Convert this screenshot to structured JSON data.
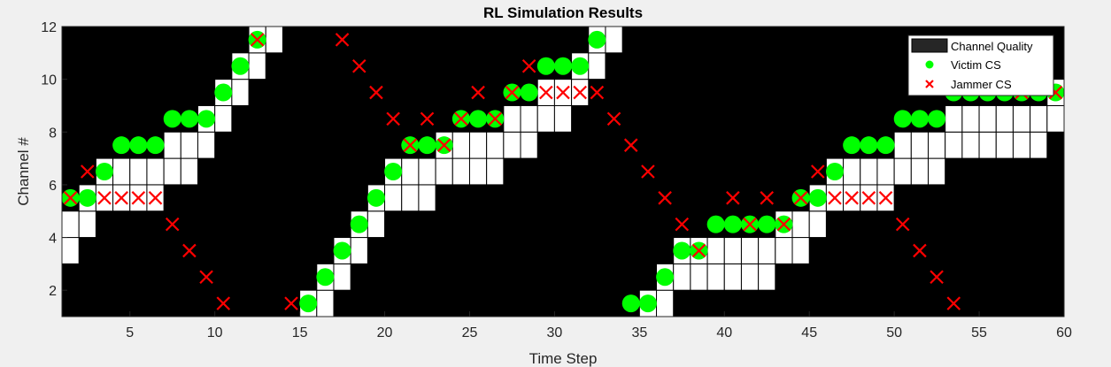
{
  "chart_data": {
    "type": "scatter",
    "title": "RL Simulation Results",
    "xlabel": "Time Step",
    "ylabel": "Channel #",
    "xlim": [
      1,
      60
    ],
    "ylim": [
      1,
      12
    ],
    "xticks": [
      5,
      10,
      15,
      20,
      25,
      30,
      35,
      40,
      45,
      50,
      55,
      60
    ],
    "yticks": [
      2,
      4,
      6,
      8,
      10,
      12
    ],
    "background_color": "#000000",
    "legend_position": "top-right",
    "legend": [
      {
        "label": "Channel Quality",
        "marker": "filled-rect",
        "color": "#262626"
      },
      {
        "label": "Victim CS",
        "marker": "circle",
        "color": "#00ff00"
      },
      {
        "label": "Jammer CS",
        "marker": "x",
        "color": "#ff0000"
      }
    ],
    "channel_quality": {
      "color": "#ffffff",
      "note_cell_width_steps": 1,
      "columns": [
        {
          "x": 2,
          "channels": [
            3,
            4
          ]
        },
        {
          "x": 3,
          "channels": [
            4,
            5
          ]
        },
        {
          "x": 4,
          "channels": [
            5,
            6
          ]
        },
        {
          "x": 5,
          "channels": [
            5,
            6
          ]
        },
        {
          "x": 6,
          "channels": [
            5,
            6
          ]
        },
        {
          "x": 7,
          "channels": [
            5,
            6
          ]
        },
        {
          "x": 8,
          "channels": [
            6,
            7
          ]
        },
        {
          "x": 9,
          "channels": [
            6,
            7
          ]
        },
        {
          "x": 10,
          "channels": [
            7,
            8
          ]
        },
        {
          "x": 11,
          "channels": [
            8,
            9
          ]
        },
        {
          "x": 12,
          "channels": [
            9,
            10
          ]
        },
        {
          "x": 13,
          "channels": [
            10,
            11
          ]
        },
        {
          "x": 14,
          "channels": [
            11
          ]
        },
        {
          "x": 16,
          "channels": [
            1
          ]
        },
        {
          "x": 17,
          "channels": [
            1,
            2
          ]
        },
        {
          "x": 18,
          "channels": [
            2,
            3
          ]
        },
        {
          "x": 19,
          "channels": [
            3,
            4
          ]
        },
        {
          "x": 20,
          "channels": [
            4,
            5
          ]
        },
        {
          "x": 21,
          "channels": [
            5,
            6
          ]
        },
        {
          "x": 22,
          "channels": [
            5,
            6
          ]
        },
        {
          "x": 23,
          "channels": [
            5,
            6
          ]
        },
        {
          "x": 24,
          "channels": [
            6,
            7
          ]
        },
        {
          "x": 25,
          "channels": [
            6,
            7
          ]
        },
        {
          "x": 26,
          "channels": [
            6,
            7
          ]
        },
        {
          "x": 27,
          "channels": [
            6,
            7
          ]
        },
        {
          "x": 28,
          "channels": [
            7,
            8
          ]
        },
        {
          "x": 29,
          "channels": [
            7,
            8
          ]
        },
        {
          "x": 30,
          "channels": [
            8,
            9
          ]
        },
        {
          "x": 31,
          "channels": [
            8,
            9
          ]
        },
        {
          "x": 32,
          "channels": [
            9,
            10
          ]
        },
        {
          "x": 33,
          "channels": [
            10,
            11
          ]
        },
        {
          "x": 34,
          "channels": [
            11
          ]
        },
        {
          "x": 36,
          "channels": [
            1
          ]
        },
        {
          "x": 37,
          "channels": [
            1,
            2
          ]
        },
        {
          "x": 38,
          "channels": [
            2,
            3
          ]
        },
        {
          "x": 39,
          "channels": [
            2,
            3
          ]
        },
        {
          "x": 40,
          "channels": [
            2,
            3
          ]
        },
        {
          "x": 41,
          "channels": [
            2,
            3
          ]
        },
        {
          "x": 42,
          "channels": [
            2,
            3
          ]
        },
        {
          "x": 43,
          "channels": [
            2,
            3
          ]
        },
        {
          "x": 44,
          "channels": [
            3,
            4
          ]
        },
        {
          "x": 45,
          "channels": [
            3,
            4
          ]
        },
        {
          "x": 46,
          "channels": [
            4,
            5
          ]
        },
        {
          "x": 47,
          "channels": [
            5,
            6
          ]
        },
        {
          "x": 48,
          "channels": [
            5,
            6
          ]
        },
        {
          "x": 49,
          "channels": [
            5,
            6
          ]
        },
        {
          "x": 50,
          "channels": [
            5,
            6
          ]
        },
        {
          "x": 51,
          "channels": [
            6,
            7
          ]
        },
        {
          "x": 52,
          "channels": [
            6,
            7
          ]
        },
        {
          "x": 53,
          "channels": [
            6,
            7
          ]
        },
        {
          "x": 54,
          "channels": [
            7,
            8
          ]
        },
        {
          "x": 55,
          "channels": [
            7,
            8
          ]
        },
        {
          "x": 56,
          "channels": [
            7,
            8
          ]
        },
        {
          "x": 57,
          "channels": [
            7,
            8
          ]
        },
        {
          "x": 58,
          "channels": [
            7,
            8
          ]
        },
        {
          "x": 59,
          "channels": [
            7,
            8
          ]
        },
        {
          "x": 60,
          "channels": [
            8,
            9
          ]
        }
      ]
    },
    "series": [
      {
        "name": "Victim CS",
        "marker": "circle",
        "color": "#00ff00",
        "x": [
          1.5,
          2.5,
          3.5,
          4.5,
          5.5,
          6.5,
          7.5,
          8.5,
          9.5,
          10.5,
          11.5,
          12.5,
          15.5,
          16.5,
          17.5,
          18.5,
          19.5,
          20.5,
          21.5,
          22.5,
          23.5,
          24.5,
          25.5,
          26.5,
          27.5,
          28.5,
          29.5,
          30.5,
          31.5,
          32.5,
          34.5,
          35.5,
          36.5,
          37.5,
          38.5,
          39.5,
          40.5,
          41.5,
          42.5,
          43.5,
          44.5,
          45.5,
          46.5,
          47.5,
          48.5,
          49.5,
          50.5,
          51.5,
          52.5,
          53.5,
          54.5,
          55.5,
          56.5,
          57.5,
          58.5,
          59.5
        ],
        "y": [
          5.5,
          5.5,
          6.5,
          7.5,
          7.5,
          7.5,
          8.5,
          8.5,
          8.5,
          9.5,
          10.5,
          11.5,
          1.5,
          2.5,
          3.5,
          4.5,
          5.5,
          6.5,
          7.5,
          7.5,
          7.5,
          8.5,
          8.5,
          8.5,
          9.5,
          9.5,
          10.5,
          10.5,
          10.5,
          11.5,
          1.5,
          1.5,
          2.5,
          3.5,
          3.5,
          4.5,
          4.5,
          4.5,
          4.5,
          4.5,
          5.5,
          5.5,
          6.5,
          7.5,
          7.5,
          7.5,
          8.5,
          8.5,
          8.5,
          9.5,
          9.5,
          9.5,
          9.5,
          9.5,
          9.5,
          9.5
        ]
      },
      {
        "name": "Jammer CS",
        "marker": "x",
        "color": "#ff0000",
        "x": [
          1.5,
          2.5,
          3.5,
          4.5,
          5.5,
          6.5,
          7.5,
          8.5,
          9.5,
          10.5,
          12.5,
          14.5,
          17.5,
          18.5,
          19.5,
          20.5,
          21.5,
          22.5,
          23.5,
          24.5,
          25.5,
          26.5,
          27.5,
          28.5,
          29.5,
          30.5,
          31.5,
          32.5,
          33.5,
          34.5,
          35.5,
          36.5,
          37.5,
          38.5,
          40.5,
          41.5,
          42.5,
          43.5,
          44.5,
          45.5,
          46.5,
          47.5,
          48.5,
          49.5,
          50.5,
          51.5,
          52.5,
          53.5,
          57.5,
          59.5
        ],
        "y": [
          5.5,
          6.5,
          5.5,
          5.5,
          5.5,
          5.5,
          4.5,
          3.5,
          2.5,
          1.5,
          11.5,
          1.5,
          11.5,
          10.5,
          9.5,
          8.5,
          7.5,
          8.5,
          7.5,
          8.5,
          9.5,
          8.5,
          9.5,
          10.5,
          9.5,
          9.5,
          9.5,
          9.5,
          8.5,
          7.5,
          6.5,
          5.5,
          4.5,
          3.5,
          5.5,
          4.5,
          5.5,
          4.5,
          5.5,
          6.5,
          5.5,
          5.5,
          5.5,
          5.5,
          4.5,
          3.5,
          2.5,
          1.5,
          9.5,
          9.5
        ]
      }
    ]
  }
}
